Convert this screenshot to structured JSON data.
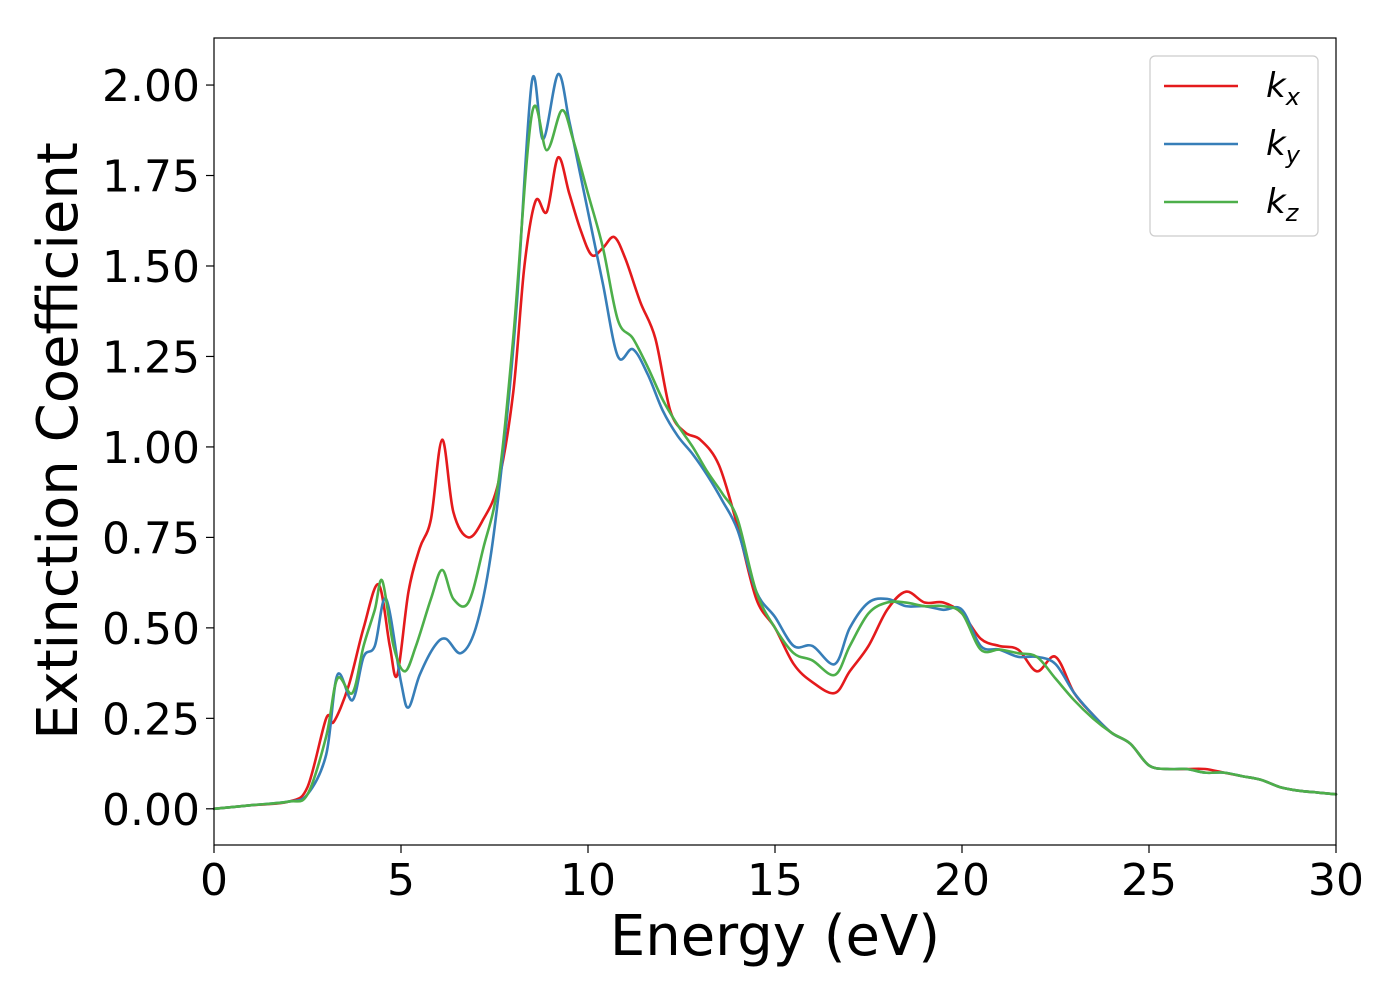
{
  "chart_data": {
    "type": "line",
    "xlabel": "Energy (eV)",
    "ylabel": "Extinction Coefficient",
    "xlim": [
      0,
      30
    ],
    "ylim": [
      -0.1,
      2.13
    ],
    "x_ticks": [
      "0",
      "5",
      "10",
      "15",
      "20",
      "25",
      "30"
    ],
    "y_ticks": [
      "0.00",
      "0.25",
      "0.50",
      "0.75",
      "1.00",
      "1.25",
      "1.50",
      "1.75",
      "2.00"
    ],
    "grid": false,
    "legend_position": "top-right",
    "series": [
      {
        "name": "k",
        "subscript": "x",
        "color": "#e41a1c",
        "x": [
          0,
          1,
          2,
          2.5,
          3,
          3.2,
          3.6,
          4,
          4.4,
          4.7,
          4.9,
          5.2,
          5.5,
          5.8,
          6.1,
          6.4,
          6.8,
          7.2,
          7.6,
          8,
          8.3,
          8.6,
          8.9,
          9.2,
          9.5,
          9.8,
          10.1,
          10.4,
          10.7,
          11,
          11.4,
          11.8,
          12.2,
          12.6,
          13,
          13.5,
          14,
          14.5,
          15,
          15.5,
          16,
          16.6,
          17,
          17.5,
          18,
          18.5,
          19,
          19.5,
          20,
          20.5,
          21,
          21.5,
          22,
          22.5,
          23,
          23.5,
          24,
          24.5,
          25,
          25.5,
          26,
          26.5,
          27,
          27.5,
          28,
          28.5,
          29,
          29.5,
          30
        ],
        "y": [
          0,
          0.01,
          0.02,
          0.06,
          0.25,
          0.24,
          0.34,
          0.5,
          0.62,
          0.45,
          0.37,
          0.6,
          0.72,
          0.8,
          1.02,
          0.82,
          0.75,
          0.8,
          0.9,
          1.15,
          1.5,
          1.68,
          1.65,
          1.8,
          1.7,
          1.6,
          1.53,
          1.55,
          1.58,
          1.52,
          1.4,
          1.3,
          1.1,
          1.04,
          1.02,
          0.95,
          0.78,
          0.58,
          0.5,
          0.4,
          0.35,
          0.32,
          0.38,
          0.45,
          0.55,
          0.6,
          0.57,
          0.57,
          0.54,
          0.47,
          0.45,
          0.44,
          0.38,
          0.42,
          0.32,
          0.26,
          0.21,
          0.18,
          0.12,
          0.11,
          0.11,
          0.11,
          0.1,
          0.09,
          0.08,
          0.06,
          0.05,
          0.045,
          0.04
        ]
      },
      {
        "name": "k",
        "subscript": "y",
        "color": "#377eb8",
        "x": [
          0,
          1,
          2,
          2.5,
          3,
          3.3,
          3.7,
          4,
          4.3,
          4.6,
          5,
          5.2,
          5.5,
          5.9,
          6.2,
          6.6,
          7,
          7.4,
          7.8,
          8.1,
          8.5,
          8.8,
          9.2,
          9.5,
          9.8,
          10.1,
          10.4,
          10.8,
          11.2,
          11.6,
          12,
          12.4,
          12.8,
          13.2,
          13.6,
          14,
          14.5,
          15,
          15.5,
          16,
          16.6,
          17,
          17.5,
          18,
          18.5,
          19,
          19.5,
          20,
          20.5,
          21,
          21.5,
          22,
          22.5,
          23,
          23.5,
          24,
          24.5,
          25,
          25.5,
          26,
          26.5,
          27,
          27.5,
          28,
          28.5,
          29,
          29.5,
          30
        ],
        "y": [
          0,
          0.01,
          0.02,
          0.04,
          0.15,
          0.37,
          0.3,
          0.42,
          0.45,
          0.58,
          0.35,
          0.28,
          0.37,
          0.45,
          0.47,
          0.43,
          0.5,
          0.7,
          1.05,
          1.4,
          2.01,
          1.85,
          2.03,
          1.9,
          1.75,
          1.6,
          1.45,
          1.25,
          1.27,
          1.2,
          1.1,
          1.03,
          0.98,
          0.92,
          0.85,
          0.77,
          0.6,
          0.53,
          0.45,
          0.45,
          0.4,
          0.5,
          0.57,
          0.58,
          0.56,
          0.56,
          0.55,
          0.55,
          0.45,
          0.44,
          0.42,
          0.42,
          0.4,
          0.32,
          0.26,
          0.21,
          0.18,
          0.12,
          0.11,
          0.11,
          0.1,
          0.1,
          0.09,
          0.08,
          0.06,
          0.05,
          0.045,
          0.04
        ]
      },
      {
        "name": "k",
        "subscript": "z",
        "color": "#4daf4a",
        "x": [
          0,
          1,
          2,
          2.5,
          3,
          3.3,
          3.7,
          4,
          4.3,
          4.5,
          4.8,
          5.1,
          5.4,
          5.8,
          6.1,
          6.4,
          6.8,
          7.2,
          7.6,
          8,
          8.5,
          8.9,
          9.3,
          9.6,
          10,
          10.4,
          10.8,
          11.2,
          11.6,
          12,
          12.4,
          12.8,
          13.2,
          13.6,
          14,
          14.5,
          15,
          15.5,
          16,
          16.6,
          17,
          17.5,
          18,
          18.5,
          19,
          19.5,
          20,
          20.5,
          21,
          21.5,
          22,
          22.5,
          23,
          23.5,
          24,
          24.5,
          25,
          25.5,
          26,
          26.5,
          27,
          27.5,
          28,
          28.5,
          29,
          29.5,
          30
        ],
        "y": [
          0,
          0.01,
          0.02,
          0.04,
          0.2,
          0.36,
          0.32,
          0.45,
          0.55,
          0.63,
          0.45,
          0.38,
          0.45,
          0.58,
          0.66,
          0.58,
          0.57,
          0.72,
          0.9,
          1.3,
          1.92,
          1.82,
          1.93,
          1.85,
          1.7,
          1.55,
          1.35,
          1.3,
          1.22,
          1.13,
          1.06,
          1.0,
          0.93,
          0.87,
          0.8,
          0.6,
          0.5,
          0.43,
          0.41,
          0.37,
          0.45,
          0.54,
          0.57,
          0.57,
          0.56,
          0.56,
          0.54,
          0.44,
          0.44,
          0.43,
          0.42,
          0.36,
          0.3,
          0.25,
          0.21,
          0.18,
          0.12,
          0.11,
          0.11,
          0.1,
          0.1,
          0.09,
          0.08,
          0.06,
          0.05,
          0.045,
          0.04
        ]
      }
    ]
  }
}
